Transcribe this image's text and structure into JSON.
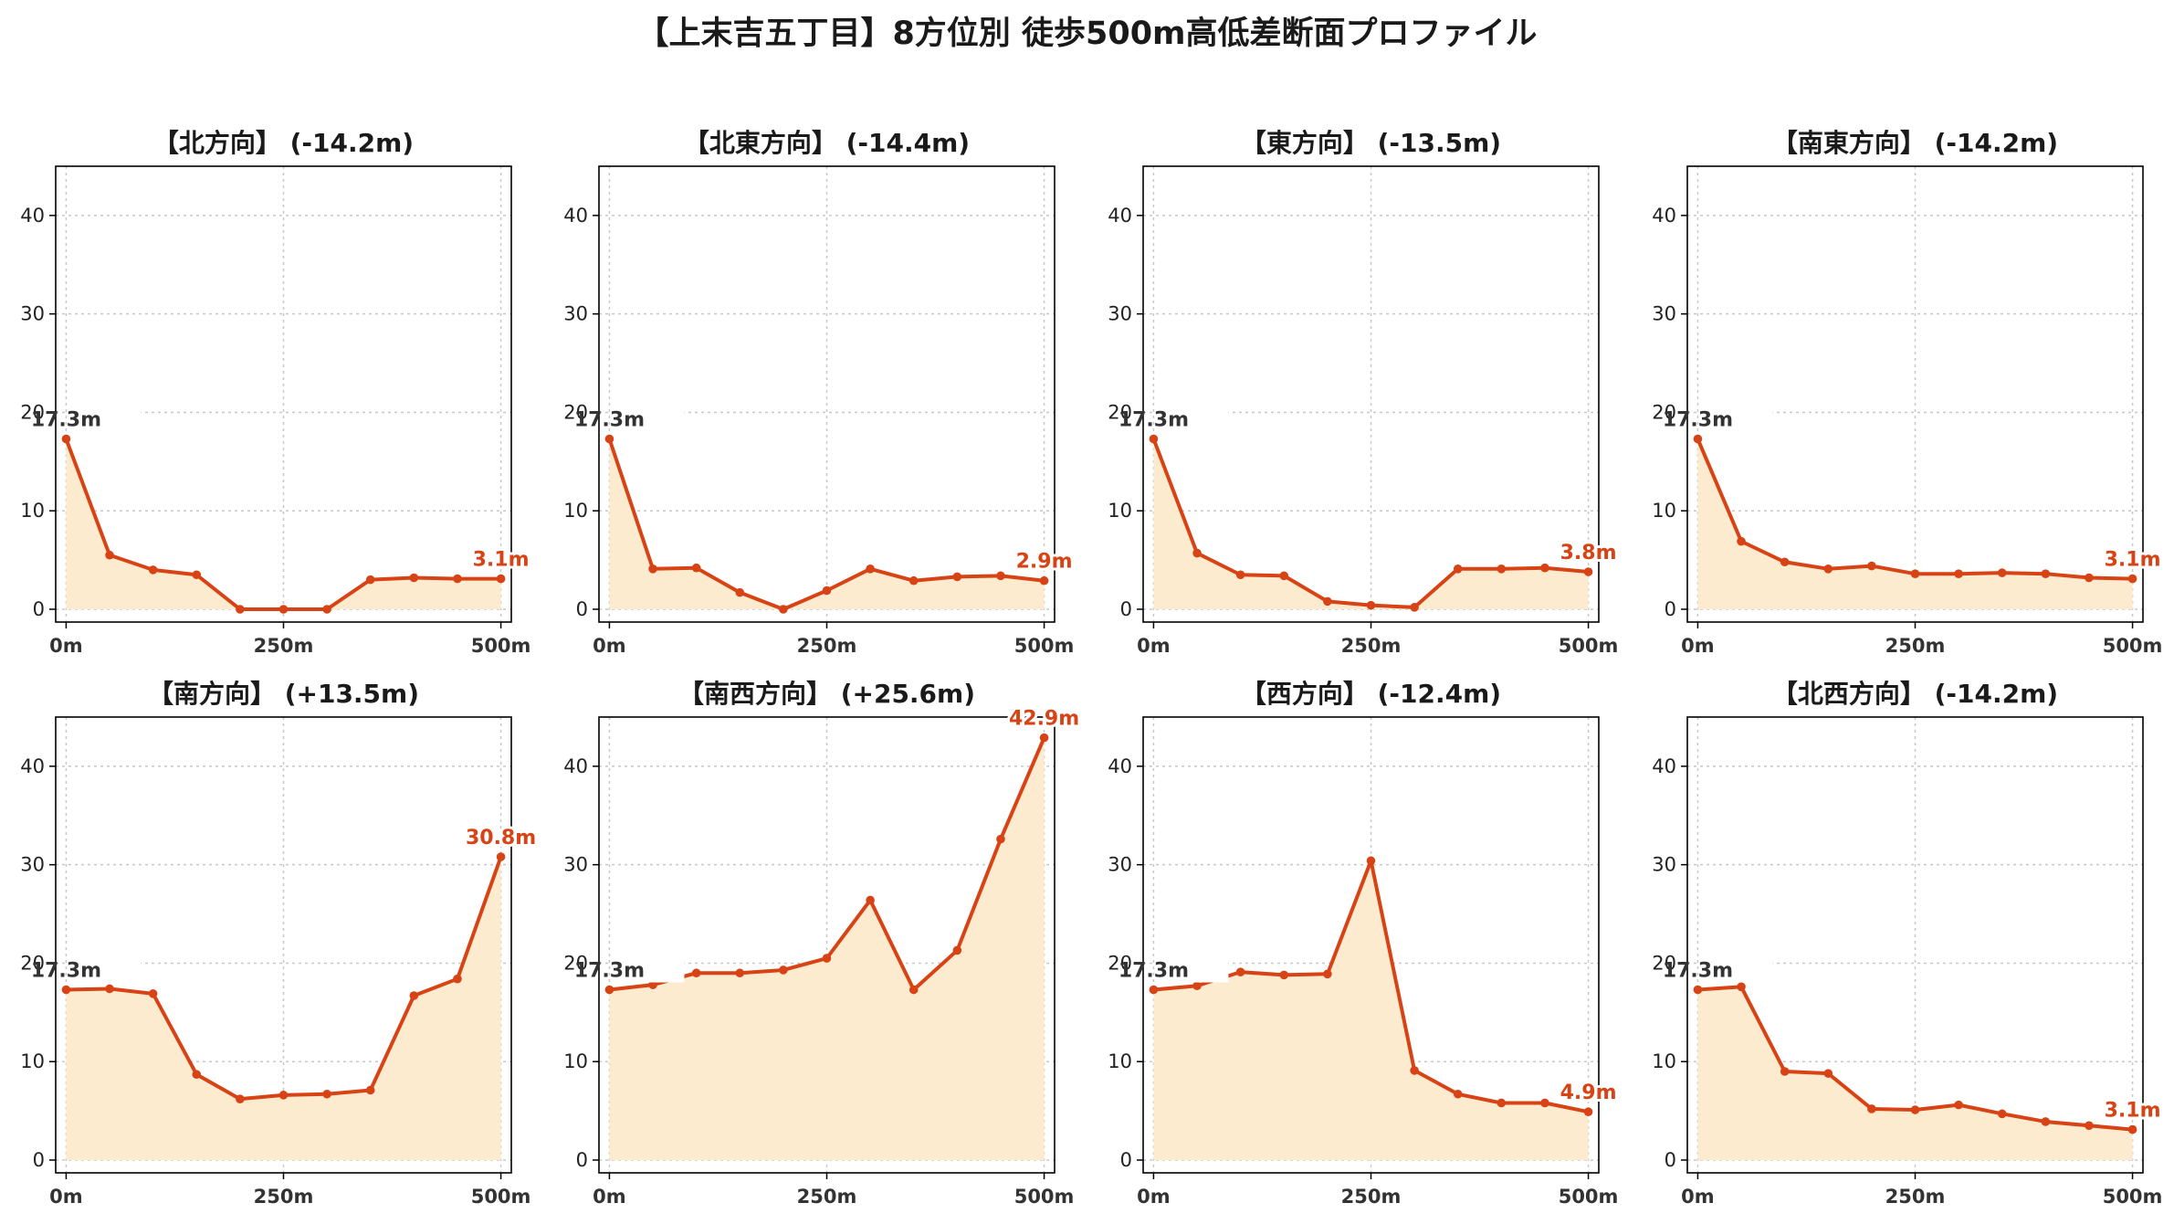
{
  "title": "【上末吉五丁目】8方位別 徒歩500m高低差断面プロファイル",
  "chart_data": [
    {
      "type": "area",
      "title": "【北方向】 (-14.2m)",
      "x": [
        0,
        50,
        100,
        150,
        200,
        250,
        300,
        350,
        400,
        450,
        500
      ],
      "x_tick_labels": [
        "0m",
        "250m",
        "500m"
      ],
      "x_ticks": [
        0,
        250,
        500
      ],
      "y_ticks": [
        0,
        10,
        20,
        30,
        40
      ],
      "ylim": [
        -1.3,
        45
      ],
      "values": [
        17.3,
        5.5,
        4.0,
        3.5,
        0.0,
        0.0,
        0.0,
        3.0,
        3.2,
        3.1,
        3.1
      ],
      "start_label": "17.3m",
      "end_label": "3.1m",
      "grid": true
    },
    {
      "type": "area",
      "title": "【北東方向】 (-14.4m)",
      "x": [
        0,
        50,
        100,
        150,
        200,
        250,
        300,
        350,
        400,
        450,
        500
      ],
      "x_tick_labels": [
        "0m",
        "250m",
        "500m"
      ],
      "x_ticks": [
        0,
        250,
        500
      ],
      "y_ticks": [
        0,
        10,
        20,
        30,
        40
      ],
      "ylim": [
        -1.3,
        45
      ],
      "values": [
        17.3,
        4.1,
        4.2,
        1.7,
        0.0,
        1.9,
        4.1,
        2.9,
        3.3,
        3.4,
        2.9
      ],
      "start_label": "17.3m",
      "end_label": "2.9m",
      "grid": true
    },
    {
      "type": "area",
      "title": "【東方向】 (-13.5m)",
      "x": [
        0,
        50,
        100,
        150,
        200,
        250,
        300,
        350,
        400,
        450,
        500
      ],
      "x_tick_labels": [
        "0m",
        "250m",
        "500m"
      ],
      "x_ticks": [
        0,
        250,
        500
      ],
      "y_ticks": [
        0,
        10,
        20,
        30,
        40
      ],
      "ylim": [
        -1.3,
        45
      ],
      "values": [
        17.3,
        5.7,
        3.5,
        3.4,
        0.8,
        0.4,
        0.2,
        4.1,
        4.1,
        4.2,
        3.8
      ],
      "start_label": "17.3m",
      "end_label": "3.8m",
      "grid": true
    },
    {
      "type": "area",
      "title": "【南東方向】 (-14.2m)",
      "x": [
        0,
        50,
        100,
        150,
        200,
        250,
        300,
        350,
        400,
        450,
        500
      ],
      "x_tick_labels": [
        "0m",
        "250m",
        "500m"
      ],
      "x_ticks": [
        0,
        250,
        500
      ],
      "y_ticks": [
        0,
        10,
        20,
        30,
        40
      ],
      "ylim": [
        -1.3,
        45
      ],
      "values": [
        17.3,
        6.9,
        4.8,
        4.1,
        4.4,
        3.6,
        3.6,
        3.7,
        3.6,
        3.2,
        3.1
      ],
      "start_label": "17.3m",
      "end_label": "3.1m",
      "grid": true
    },
    {
      "type": "area",
      "title": "【南方向】 (+13.5m)",
      "x": [
        0,
        50,
        100,
        150,
        200,
        250,
        300,
        350,
        400,
        450,
        500
      ],
      "x_tick_labels": [
        "0m",
        "250m",
        "500m"
      ],
      "x_ticks": [
        0,
        250,
        500
      ],
      "y_ticks": [
        0,
        10,
        20,
        30,
        40
      ],
      "ylim": [
        -1.3,
        45
      ],
      "values": [
        17.3,
        17.4,
        16.9,
        8.7,
        6.2,
        6.6,
        6.7,
        7.1,
        16.7,
        18.4,
        30.8
      ],
      "start_label": "17.3m",
      "end_label": "30.8m",
      "grid": true
    },
    {
      "type": "area",
      "title": "【南西方向】 (+25.6m)",
      "x": [
        0,
        50,
        100,
        150,
        200,
        250,
        300,
        350,
        400,
        450,
        500
      ],
      "x_tick_labels": [
        "0m",
        "250m",
        "500m"
      ],
      "x_ticks": [
        0,
        250,
        500
      ],
      "y_ticks": [
        0,
        10,
        20,
        30,
        40
      ],
      "ylim": [
        -1.3,
        45
      ],
      "values": [
        17.3,
        17.8,
        19.0,
        19.0,
        19.3,
        20.5,
        26.4,
        17.3,
        21.3,
        32.6,
        42.9
      ],
      "start_label": "17.3m",
      "end_label": "42.9m",
      "grid": true
    },
    {
      "type": "area",
      "title": "【西方向】 (-12.4m)",
      "x": [
        0,
        50,
        100,
        150,
        200,
        250,
        300,
        350,
        400,
        450,
        500
      ],
      "x_tick_labels": [
        "0m",
        "250m",
        "500m"
      ],
      "x_ticks": [
        0,
        250,
        500
      ],
      "y_ticks": [
        0,
        10,
        20,
        30,
        40
      ],
      "ylim": [
        -1.3,
        45
      ],
      "values": [
        17.3,
        17.7,
        19.1,
        18.8,
        18.9,
        30.4,
        9.1,
        6.7,
        5.8,
        5.8,
        4.9
      ],
      "start_label": "17.3m",
      "end_label": "4.9m",
      "grid": true
    },
    {
      "type": "area",
      "title": "【北西方向】 (-14.2m)",
      "x": [
        0,
        50,
        100,
        150,
        200,
        250,
        300,
        350,
        400,
        450,
        500
      ],
      "x_tick_labels": [
        "0m",
        "250m",
        "500m"
      ],
      "x_ticks": [
        0,
        250,
        500
      ],
      "y_ticks": [
        0,
        10,
        20,
        30,
        40
      ],
      "ylim": [
        -1.3,
        45
      ],
      "values": [
        17.3,
        17.6,
        9.0,
        8.8,
        5.2,
        5.1,
        5.6,
        4.7,
        3.9,
        3.5,
        3.1
      ],
      "start_label": "17.3m",
      "end_label": "3.1m",
      "grid": true
    }
  ]
}
